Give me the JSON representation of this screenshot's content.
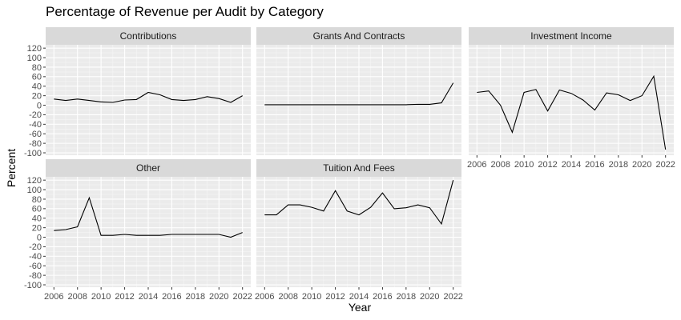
{
  "chart_data": {
    "type": "line",
    "title": "Percentage of Revenue per Audit by Category",
    "xlabel": "Year",
    "ylabel": "Percent",
    "xlim": [
      2005.3,
      2022.7
    ],
    "ylim": [
      -105,
      127
    ],
    "x_ticks": [
      2006,
      2008,
      2010,
      2012,
      2014,
      2016,
      2018,
      2020,
      2022
    ],
    "y_ticks": [
      -100,
      -80,
      -60,
      -40,
      -20,
      0,
      20,
      40,
      60,
      80,
      100,
      120
    ],
    "grid": true,
    "series": [
      {
        "name": "Contributions",
        "x": [
          2006,
          2007,
          2008,
          2009,
          2010,
          2011,
          2012,
          2013,
          2014,
          2015,
          2016,
          2017,
          2018,
          2019,
          2020,
          2021,
          2022
        ],
        "values": [
          13,
          10,
          13,
          10,
          7,
          6,
          11,
          12,
          27,
          22,
          12,
          10,
          12,
          18,
          14,
          6,
          20
        ]
      },
      {
        "name": "Grants And Contracts",
        "x": [
          2006,
          2007,
          2008,
          2009,
          2010,
          2011,
          2012,
          2013,
          2014,
          2015,
          2016,
          2017,
          2018,
          2019,
          2020,
          2021,
          2022
        ],
        "values": [
          1,
          1,
          1,
          1,
          1,
          1,
          1,
          1,
          1,
          1,
          1,
          1,
          1,
          2,
          2,
          5,
          47
        ]
      },
      {
        "name": "Investment Income",
        "x": [
          2006,
          2007,
          2008,
          2009,
          2010,
          2011,
          2012,
          2013,
          2014,
          2015,
          2016,
          2017,
          2018,
          2019,
          2020,
          2021,
          2022
        ],
        "values": [
          27,
          30,
          0,
          -57,
          27,
          33,
          -12,
          32,
          25,
          11,
          -10,
          26,
          22,
          10,
          20,
          61,
          -93
        ]
      },
      {
        "name": "Other",
        "x": [
          2006,
          2007,
          2008,
          2009,
          2010,
          2011,
          2012,
          2013,
          2014,
          2015,
          2016,
          2017,
          2018,
          2019,
          2020,
          2021,
          2022
        ],
        "values": [
          14,
          16,
          22,
          83,
          4,
          4,
          6,
          4,
          4,
          4,
          6,
          6,
          6,
          6,
          6,
          0,
          10
        ]
      },
      {
        "name": "Tuition And Fees",
        "x": [
          2006,
          2007,
          2008,
          2009,
          2010,
          2011,
          2012,
          2013,
          2014,
          2015,
          2016,
          2017,
          2018,
          2019,
          2020,
          2021,
          2022
        ],
        "values": [
          47,
          47,
          68,
          68,
          63,
          55,
          98,
          55,
          47,
          63,
          93,
          60,
          62,
          68,
          62,
          28,
          120
        ]
      }
    ]
  }
}
